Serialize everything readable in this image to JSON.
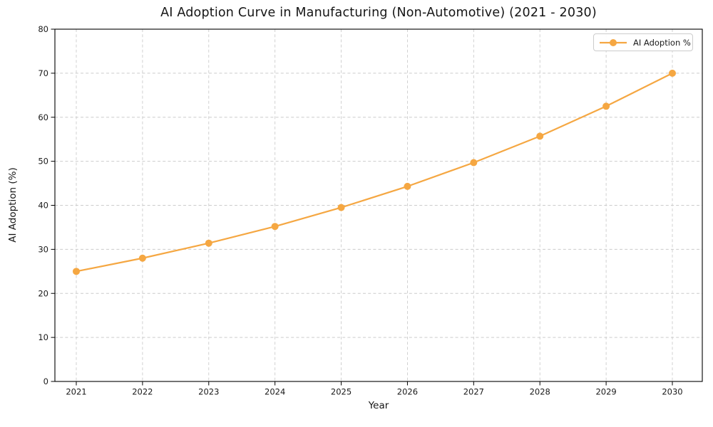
{
  "chart_data": {
    "type": "line",
    "title": "AI Adoption Curve in Manufacturing (Non-Automotive) (2021 - 2030)",
    "xlabel": "Year",
    "ylabel": "AI Adoption (%)",
    "categories": [
      "2021",
      "2022",
      "2023",
      "2024",
      "2025",
      "2026",
      "2027",
      "2028",
      "2029",
      "2030"
    ],
    "series": [
      {
        "name": "AI Adoption %",
        "values": [
          25.0,
          28.0,
          31.4,
          35.2,
          39.5,
          44.3,
          49.7,
          55.7,
          62.5,
          70.0
        ],
        "color": "#F5A742",
        "marker": "circle",
        "line_style": "solid"
      }
    ],
    "ylim": [
      0,
      80
    ],
    "yticks": [
      0,
      10,
      20,
      30,
      40,
      50,
      60,
      70,
      80
    ],
    "grid": true,
    "grid_style": "dashed",
    "legend": {
      "position": "upper-right",
      "entries": [
        "AI Adoption %"
      ]
    }
  },
  "style": {
    "background": "#FFFFFF",
    "grid_color": "#CCCCCC",
    "spine_color": "#000000",
    "text_color": "#1A1A1A",
    "accent": "#F5A742"
  }
}
